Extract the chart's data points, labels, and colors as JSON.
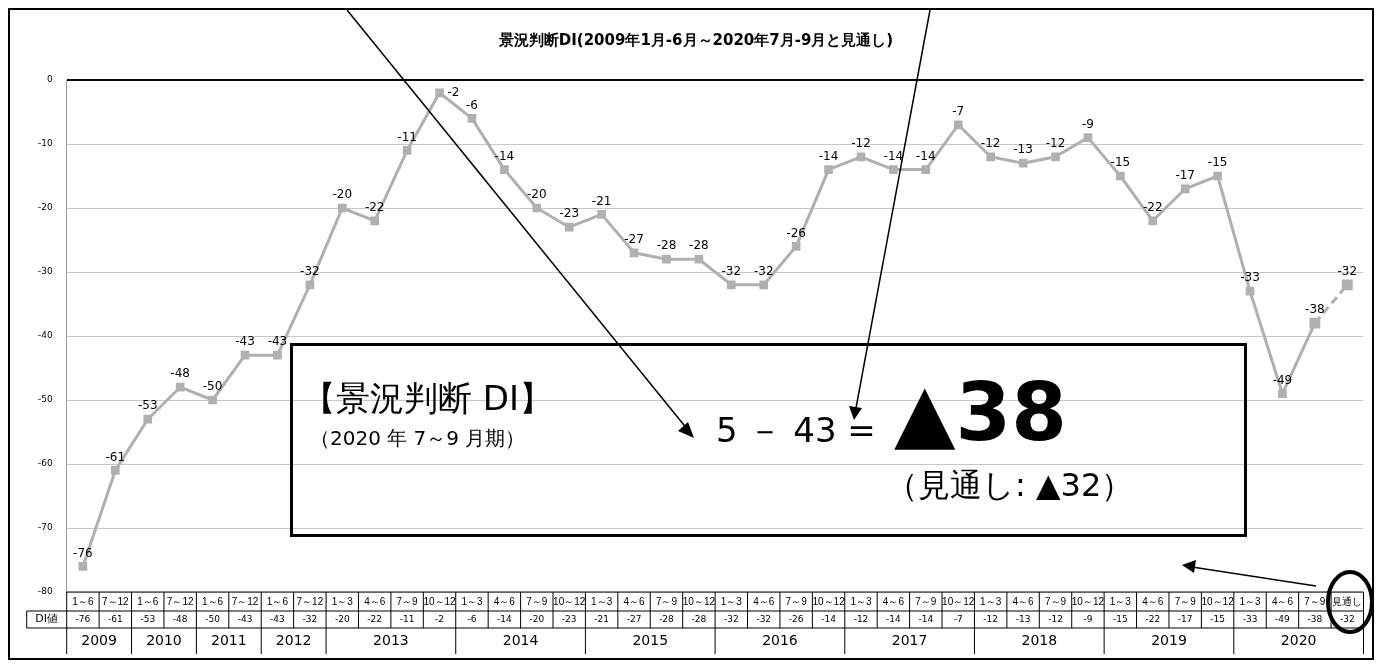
{
  "chart_data": {
    "type": "line",
    "title": "景況判断DI(2009年1月-6月～2020年7月-9月と見通し)",
    "categories": [
      "1～6",
      "7～12",
      "1～6",
      "7～12",
      "1～6",
      "7～12",
      "1～6",
      "7～12",
      "1～3",
      "4～6",
      "7～9",
      "10～12",
      "1～3",
      "4～6",
      "7～9",
      "10～12",
      "1～3",
      "4～6",
      "7～9",
      "10～12",
      "1～3",
      "4～6",
      "7～9",
      "10～12",
      "1～3",
      "4～6",
      "7～9",
      "10～12",
      "1～3",
      "4～6",
      "7～9",
      "10～12",
      "1～3",
      "4～6",
      "7～9",
      "10～12",
      "1～3",
      "4～6",
      "7～9",
      "見通し"
    ],
    "series": [
      {
        "color": "#b0b0b0",
        "line_style": "solid",
        "values": [
          -76,
          -61,
          -53,
          -48,
          -50,
          -43,
          -43,
          -32,
          -20,
          -22,
          -11,
          -2,
          -6,
          -14,
          -20,
          -23,
          -21,
          -27,
          -28,
          -28,
          -32,
          -32,
          -26,
          -14,
          -12,
          -14,
          -14,
          -7,
          -12,
          -13,
          -12,
          -9,
          -15,
          -22,
          -17,
          -15,
          -33,
          -49,
          -38,
          null
        ],
        "value_labels": [
          "-76",
          "-61",
          "-53",
          "-48",
          "-50",
          "-43",
          "-43",
          "-32",
          "-20",
          "-22",
          "-11",
          "-2",
          "-6",
          "-14",
          "-20",
          "-23",
          "-21",
          "-27",
          "-28",
          "-28",
          "-32",
          "-32",
          "-26",
          "-14",
          "-12",
          "-14",
          "-14",
          "-7",
          "-12",
          "-13",
          "-12",
          "-9",
          "-15",
          "-22",
          "-17",
          "-15",
          "-33",
          "-49",
          "-38",
          null
        ]
      },
      {
        "color": "#b0b0b0",
        "line_style": "dashed",
        "values": [
          null,
          null,
          null,
          null,
          null,
          null,
          null,
          null,
          null,
          null,
          null,
          null,
          null,
          null,
          null,
          null,
          null,
          null,
          null,
          null,
          null,
          null,
          null,
          null,
          null,
          null,
          null,
          null,
          null,
          null,
          null,
          null,
          null,
          null,
          null,
          null,
          null,
          null,
          -38,
          -32
        ],
        "value_labels": [
          null,
          null,
          null,
          null,
          null,
          null,
          null,
          null,
          null,
          null,
          null,
          null,
          null,
          null,
          null,
          null,
          null,
          null,
          null,
          null,
          null,
          null,
          null,
          null,
          null,
          null,
          null,
          null,
          null,
          null,
          null,
          null,
          null,
          null,
          null,
          null,
          null,
          null,
          null,
          "-32"
        ]
      }
    ],
    "ylim": [
      -80,
      0
    ],
    "yticks": [
      0,
      -10,
      -20,
      -30,
      -40,
      -50,
      -60,
      -70,
      -80
    ],
    "grid": "y",
    "marker": "square",
    "annotations": [
      "DI値",
      "2009",
      "2010",
      "2011",
      "2012",
      "2013",
      "2014",
      "2015",
      "2016",
      "2017",
      "2018",
      "2019",
      "2020",
      "【景況判断 DI】",
      "（2020 年 7～9 月期）",
      "5 － 43 =",
      "▲38",
      "（見通し: ▲32）",
      "-76",
      "-61",
      "-53",
      "-48",
      "-50",
      "-43",
      "-43",
      "-32",
      "-20",
      "-22",
      "-11",
      "-2",
      "-6",
      "-14",
      "-20",
      "-23",
      "-21",
      "-27",
      "-28",
      "-28",
      "-32",
      "-32",
      "-26",
      "-14",
      "-12",
      "-14",
      "-14",
      "-7",
      "-12",
      "-13",
      "-12",
      "-9",
      "-15",
      "-22",
      "-17",
      "-15",
      "-33",
      "-49",
      "-38",
      "-32"
    ]
  }
}
